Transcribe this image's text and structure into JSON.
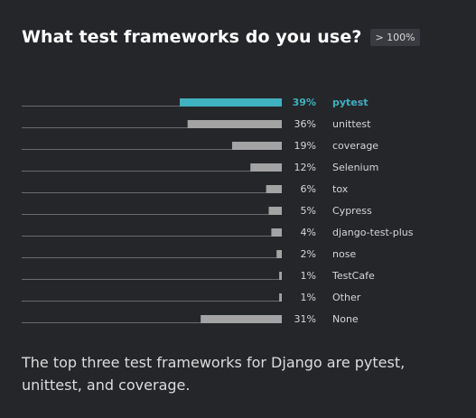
{
  "header": {
    "title": "What test frameworks do you use?",
    "badge": "> 100%"
  },
  "caption": "The top three test frameworks for Django are pytest, unittest, and coverage.",
  "colors": {
    "highlight": "#3fb1c1",
    "bar": "#a3a3a3",
    "baseline": "#6a6a6a",
    "label": "#d6d6d6"
  },
  "chart_data": {
    "type": "bar",
    "orientation": "horizontal",
    "categories": [
      "pytest",
      "unittest",
      "coverage",
      "Selenium",
      "tox",
      "Cypress",
      "django-test-plus",
      "nose",
      "TestCafe",
      "Other",
      "None"
    ],
    "values": [
      39,
      36,
      19,
      12,
      6,
      5,
      4,
      2,
      1,
      1,
      31
    ],
    "value_labels": [
      "39%",
      "36%",
      "19%",
      "12%",
      "6%",
      "5%",
      "4%",
      "2%",
      "1%",
      "1%",
      "31%"
    ],
    "highlight_index": 0,
    "xlim": [
      0,
      100
    ],
    "title": "What test frameworks do you use?",
    "xlabel": "",
    "ylabel": "",
    "grid": false
  }
}
